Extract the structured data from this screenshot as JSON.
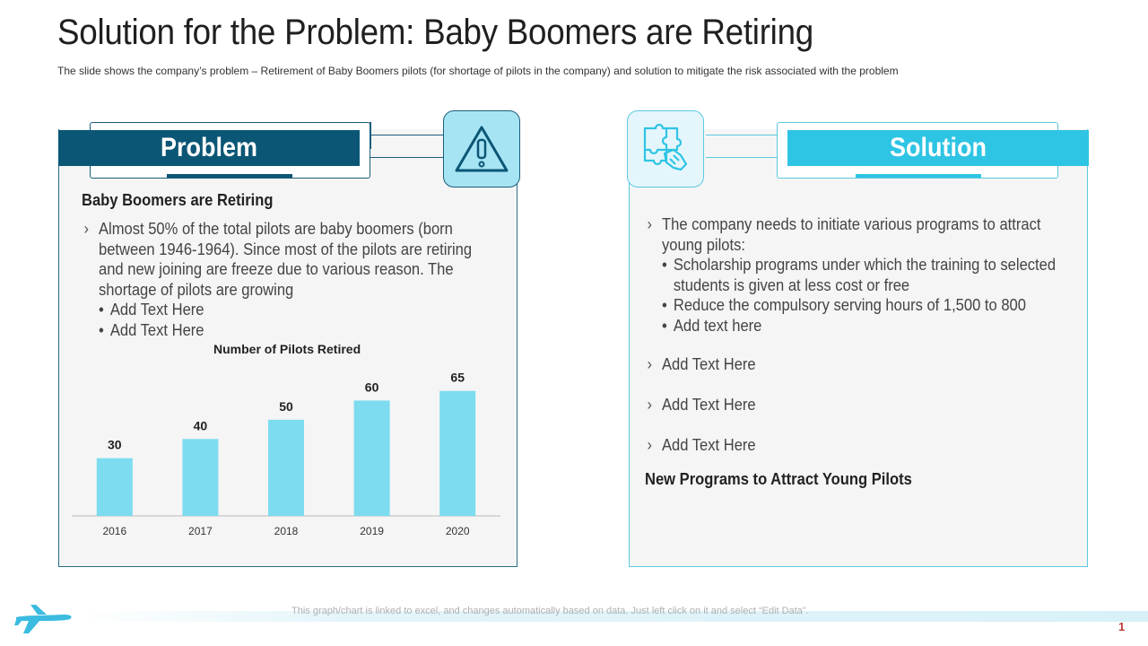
{
  "title": "Solution for the Problem: Baby Boomers are Retiring",
  "subtitle": "The slide shows the company’s problem – Retirement of Baby Boomers pilots (for shortage of pilots in the company) and solution to mitigate the risk associated with the problem",
  "problem": {
    "header": "Problem",
    "icon": "warning-icon",
    "heading": "Baby Boomers are Retiring",
    "bullet": "Almost 50% of the total pilots are baby boomers (born between 1946-1964). Since most of the pilots are retiring and new joining are freeze  due to various reason. The shortage of pilots are growing",
    "sub_bullets": [
      "Add Text Here",
      "Add Text Here"
    ]
  },
  "chart_data": {
    "type": "bar",
    "title": "Number of Pilots Retired",
    "categories": [
      "2016",
      "2017",
      "2018",
      "2019",
      "2020"
    ],
    "values": [
      30,
      40,
      50,
      60,
      65
    ],
    "ylim": [
      0,
      70
    ],
    "xlabel": "",
    "ylabel": "",
    "bar_color": "#7ddcef"
  },
  "solution": {
    "header": "Solution",
    "icon": "puzzle-icon",
    "bullet1": "The company needs to initiate various programs to attract young pilots:",
    "sub_bullets": [
      "Scholarship programs under which the training to selected students is given at less cost or free",
      "Reduce the compulsory serving hours of 1,500 to 800",
      "Add text here"
    ],
    "extra_bullets": [
      "Add Text Here",
      "Add Text Here",
      "Add Text Here"
    ],
    "footer_heading": "New Programs to Attract Young Pilots"
  },
  "footnote": "This graph/chart is linked to excel, and changes automatically based on data. Just left click on it and select “Edit Data”.",
  "page_number": "1",
  "colors": {
    "problem_dark": "#0b5675",
    "solution_accent": "#2ec4e4",
    "panel_bg": "#f5f5f5",
    "plane": "#3bbbe0"
  }
}
